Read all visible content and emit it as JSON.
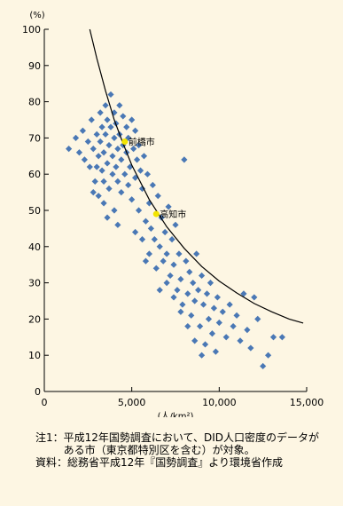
{
  "chart_data": {
    "type": "scatter",
    "title": "",
    "ylabel": "(%)",
    "xlabel": "(人/km²)",
    "xlim": [
      0,
      15000
    ],
    "ylim": [
      0,
      100
    ],
    "xticks": [
      0,
      5000,
      10000,
      15000
    ],
    "xtick_labels": [
      "0",
      "5,000",
      "10,000",
      "15,000"
    ],
    "yticks": [
      0,
      10,
      20,
      30,
      40,
      50,
      60,
      70,
      80,
      90,
      100
    ],
    "ytick_labels": [
      "0",
      "10",
      "20",
      "30",
      "40",
      "50",
      "60",
      "70",
      "80",
      "90",
      "100"
    ],
    "grid": false,
    "point_color": "#4a78b5",
    "highlight_color": "#f2e400",
    "curve_color": "#000000",
    "highlights": [
      {
        "label": "前橋市",
        "x": 4600,
        "y": 69
      },
      {
        "label": "高知市",
        "x": 6400,
        "y": 49
      }
    ],
    "curve": [
      [
        2600,
        100
      ],
      [
        3000,
        92
      ],
      [
        3500,
        83
      ],
      [
        4000,
        75
      ],
      [
        4500,
        68.5
      ],
      [
        5000,
        62.5
      ],
      [
        6000,
        53
      ],
      [
        7000,
        45.5
      ],
      [
        8000,
        39.5
      ],
      [
        9000,
        34.5
      ],
      [
        10000,
        30.5
      ],
      [
        11000,
        27.2
      ],
      [
        12000,
        24.3
      ],
      [
        13000,
        22
      ],
      [
        14000,
        20
      ],
      [
        14800,
        18.9
      ]
    ],
    "points": [
      [
        1400,
        67
      ],
      [
        1800,
        70
      ],
      [
        2000,
        66
      ],
      [
        2200,
        72
      ],
      [
        2300,
        64
      ],
      [
        2500,
        69
      ],
      [
        2600,
        62
      ],
      [
        2700,
        75
      ],
      [
        2800,
        67
      ],
      [
        2900,
        58
      ],
      [
        3000,
        71
      ],
      [
        3100,
        65
      ],
      [
        3100,
        54
      ],
      [
        3200,
        77
      ],
      [
        3200,
        69
      ],
      [
        3300,
        61
      ],
      [
        3300,
        73
      ],
      [
        3400,
        66
      ],
      [
        3400,
        58
      ],
      [
        3500,
        79
      ],
      [
        3500,
        71
      ],
      [
        3600,
        63
      ],
      [
        3600,
        75
      ],
      [
        3700,
        68
      ],
      [
        3700,
        56
      ],
      [
        3800,
        82
      ],
      [
        3800,
        73
      ],
      [
        3900,
        65
      ],
      [
        3900,
        60
      ],
      [
        4000,
        77
      ],
      [
        4000,
        70
      ],
      [
        4100,
        62
      ],
      [
        4100,
        74
      ],
      [
        4200,
        67
      ],
      [
        4200,
        58
      ],
      [
        4300,
        79
      ],
      [
        4300,
        71
      ],
      [
        4400,
        64
      ],
      [
        4400,
        55
      ],
      [
        4500,
        76
      ],
      [
        4500,
        68
      ],
      [
        4600,
        60
      ],
      [
        4700,
        73
      ],
      [
        4700,
        66
      ],
      [
        4800,
        57
      ],
      [
        4800,
        70
      ],
      [
        4900,
        62
      ],
      [
        5000,
        75
      ],
      [
        5000,
        53
      ],
      [
        5100,
        67
      ],
      [
        5200,
        59
      ],
      [
        5200,
        72
      ],
      [
        5300,
        64
      ],
      [
        5400,
        50
      ],
      [
        5400,
        68
      ],
      [
        5500,
        61
      ],
      [
        5600,
        56
      ],
      [
        5700,
        65
      ],
      [
        5800,
        47
      ],
      [
        5900,
        60
      ],
      [
        6000,
        52
      ],
      [
        6100,
        45
      ],
      [
        6200,
        57
      ],
      [
        6300,
        42
      ],
      [
        6500,
        54
      ],
      [
        6600,
        40
      ],
      [
        6700,
        48
      ],
      [
        6800,
        36
      ],
      [
        6900,
        44
      ],
      [
        7000,
        38
      ],
      [
        7100,
        51
      ],
      [
        7200,
        32
      ],
      [
        7300,
        42
      ],
      [
        7400,
        35
      ],
      [
        7500,
        46
      ],
      [
        7600,
        28
      ],
      [
        7700,
        38
      ],
      [
        7800,
        31
      ],
      [
        7900,
        24
      ],
      [
        8000,
        64
      ],
      [
        8100,
        36
      ],
      [
        8200,
        27
      ],
      [
        8300,
        33
      ],
      [
        8400,
        21
      ],
      [
        8500,
        30
      ],
      [
        8600,
        25
      ],
      [
        8700,
        38
      ],
      [
        8800,
        28
      ],
      [
        8900,
        18
      ],
      [
        9000,
        32
      ],
      [
        9100,
        24
      ],
      [
        9200,
        13
      ],
      [
        9300,
        27
      ],
      [
        9400,
        20
      ],
      [
        9500,
        30
      ],
      [
        9600,
        16
      ],
      [
        9700,
        23
      ],
      [
        9800,
        11
      ],
      [
        9900,
        26
      ],
      [
        10000,
        19
      ],
      [
        10200,
        22
      ],
      [
        10400,
        15
      ],
      [
        10600,
        24
      ],
      [
        10800,
        18
      ],
      [
        11000,
        21
      ],
      [
        11200,
        14
      ],
      [
        11400,
        27
      ],
      [
        11600,
        17
      ],
      [
        11800,
        12
      ],
      [
        12000,
        26
      ],
      [
        12200,
        20
      ],
      [
        12500,
        7
      ],
      [
        12800,
        10
      ],
      [
        13100,
        15
      ],
      [
        13600,
        15
      ],
      [
        3000,
        62
      ],
      [
        3400,
        52
      ],
      [
        3600,
        48
      ],
      [
        4000,
        50
      ],
      [
        4200,
        46
      ],
      [
        2800,
        55
      ],
      [
        5200,
        44
      ],
      [
        5600,
        42
      ],
      [
        6000,
        38
      ],
      [
        6400,
        34
      ],
      [
        7000,
        30
      ],
      [
        7400,
        26
      ],
      [
        7800,
        22
      ],
      [
        8200,
        18
      ],
      [
        8600,
        14
      ],
      [
        9000,
        10
      ],
      [
        5800,
        36
      ],
      [
        6600,
        28
      ]
    ]
  },
  "notes": {
    "note1_label": "注1：",
    "note1_text": "平成12年国勢調査において、DID人口密度のデータがある市（東京都特別区を含む）が対象。",
    "source_label": "資料：",
    "source_text": "総務省平成12年『国勢調査』より環境省作成"
  }
}
